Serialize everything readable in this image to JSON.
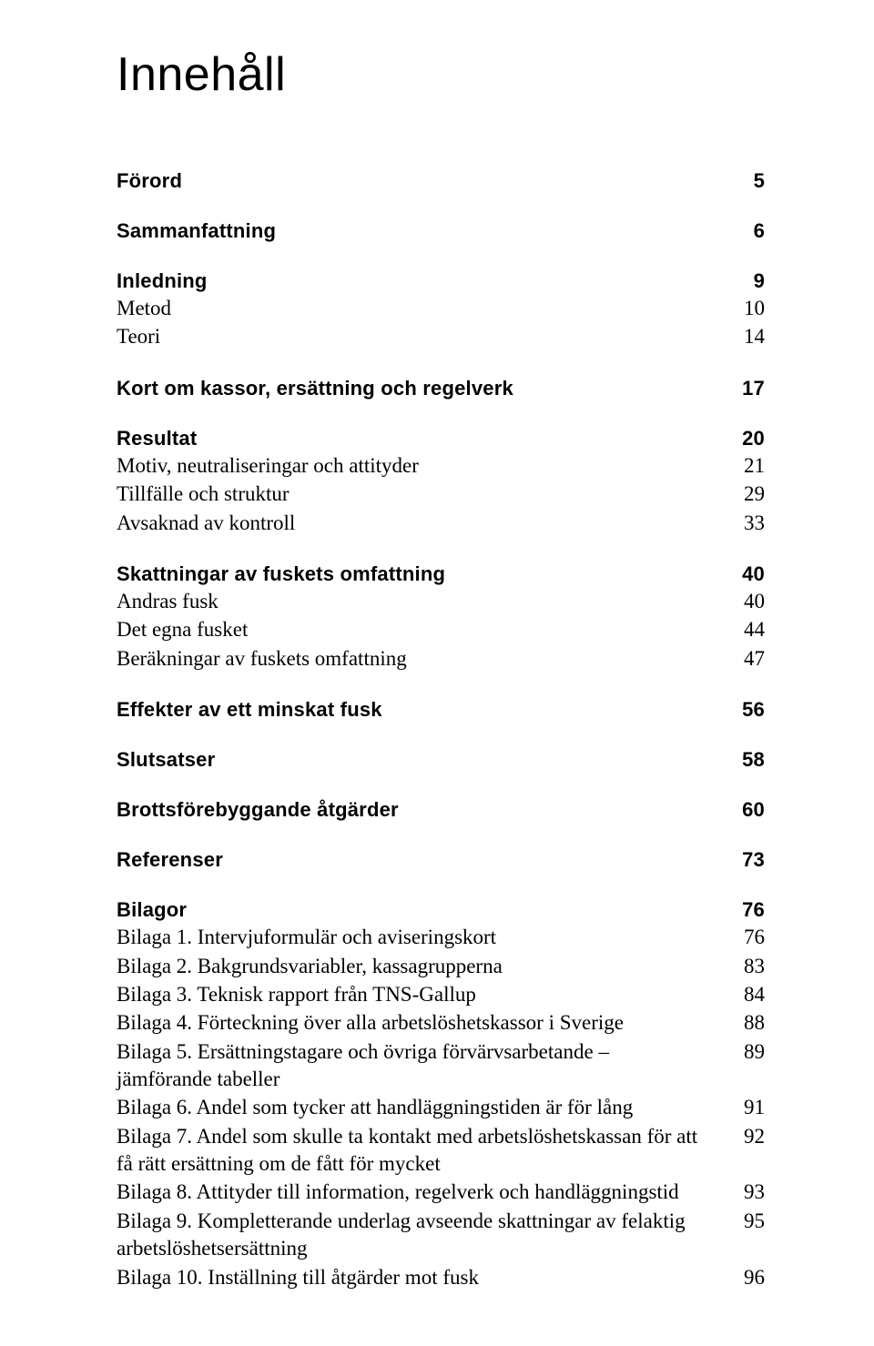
{
  "title": "Innehåll",
  "entries": [
    {
      "label": "Förord",
      "page": "5",
      "bold": true,
      "gapBefore": "lg",
      "gapAfter": "md"
    },
    {
      "label": "Sammanfattning",
      "page": "6",
      "bold": true,
      "gapAfter": "md"
    },
    {
      "label": "Inledning",
      "page": "9",
      "bold": true
    },
    {
      "label": "Metod",
      "page": "10",
      "bold": false
    },
    {
      "label": "Teori",
      "page": "14",
      "bold": false,
      "gapAfter": "md"
    },
    {
      "label": "Kort om kassor, ersättning och regelverk",
      "page": "17",
      "bold": true,
      "gapAfter": "md"
    },
    {
      "label": "Resultat",
      "page": "20",
      "bold": true
    },
    {
      "label": "Motiv, neutraliseringar och attityder",
      "page": "21",
      "bold": false
    },
    {
      "label": "Tillfälle och struktur",
      "page": "29",
      "bold": false
    },
    {
      "label": "Avsaknad av kontroll",
      "page": "33",
      "bold": false,
      "gapAfter": "md"
    },
    {
      "label": "Skattningar av fuskets omfattning",
      "page": "40",
      "bold": true
    },
    {
      "label": "Andras fusk",
      "page": "40",
      "bold": false
    },
    {
      "label": "Det egna fusket",
      "page": "44",
      "bold": false
    },
    {
      "label": "Beräkningar av fuskets omfattning",
      "page": "47",
      "bold": false,
      "gapAfter": "md"
    },
    {
      "label": "Effekter av ett minskat fusk",
      "page": "56",
      "bold": true,
      "gapAfter": "md"
    },
    {
      "label": "Slutsatser",
      "page": "58",
      "bold": true,
      "gapAfter": "md"
    },
    {
      "label": "Brottsförebyggande åtgärder",
      "page": "60",
      "bold": true,
      "gapAfter": "md"
    },
    {
      "label": "Referenser",
      "page": "73",
      "bold": true,
      "gapAfter": "md"
    },
    {
      "label": "Bilagor",
      "page": "76",
      "bold": true
    },
    {
      "label": "Bilaga 1. Intervjuformulär och aviseringskort",
      "page": "76",
      "bold": false
    },
    {
      "label": "Bilaga 2. Bakgrundsvariabler, kassagrupperna",
      "page": "83",
      "bold": false
    },
    {
      "label": "Bilaga 3. Teknisk rapport från TNS-Gallup",
      "page": "84",
      "bold": false
    },
    {
      "label": "Bilaga 4. Förteckning över alla arbetslöshetskassor i Sverige",
      "page": "88",
      "bold": false
    },
    {
      "label": "Bilaga 5. Ersättningstagare och övriga förvärvsarbetande – jämförande tabeller",
      "page": "89",
      "bold": false
    },
    {
      "label": "Bilaga 6. Andel som tycker att handläggningstiden är för lång",
      "page": "91",
      "bold": false
    },
    {
      "label": "Bilaga 7. Andel som skulle ta kontakt med arbetslöshetskassan för att få rätt ersättning om de fått för mycket",
      "page": "92",
      "bold": false
    },
    {
      "label": "Bilaga 8. Attityder till information, regelverk och handläggningstid",
      "page": "93",
      "bold": false
    },
    {
      "label": "Bilaga 9. Kompletterande underlag avseende skattningar av felaktig arbetslöshetsersättning",
      "page": "95",
      "bold": false
    },
    {
      "label": "Bilaga 10. Inställning till åtgärder mot fusk",
      "page": "96",
      "bold": false
    }
  ]
}
